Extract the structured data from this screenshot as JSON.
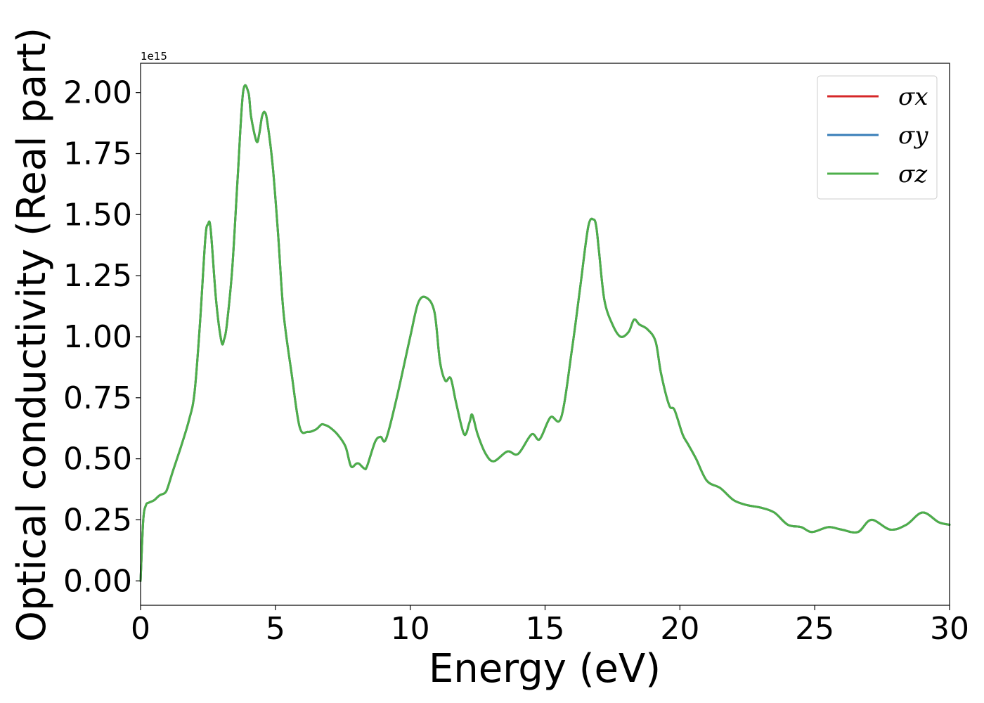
{
  "chart_data": {
    "type": "line",
    "title": "",
    "xlabel": "Energy (eV)",
    "ylabel": "Optical conductivity (Real part)",
    "y_offset_label": "1e15",
    "xlim": [
      0,
      30
    ],
    "ylim": [
      -0.1,
      2.12
    ],
    "x_ticks": [
      "0",
      "5",
      "10",
      "15",
      "20",
      "25",
      "30"
    ],
    "y_ticks": [
      "0.00",
      "0.25",
      "0.50",
      "0.75",
      "1.00",
      "1.25",
      "1.50",
      "1.75",
      "2.00"
    ],
    "grid": false,
    "legend_position": "top-right",
    "x": [
      0,
      0.1,
      0.2,
      0.3,
      0.5,
      0.7,
      0.9,
      1.0,
      1.2,
      1.5,
      1.8,
      2.0,
      2.2,
      2.4,
      2.5,
      2.6,
      2.8,
      3.0,
      3.1,
      3.2,
      3.4,
      3.6,
      3.8,
      4.0,
      4.1,
      4.3,
      4.4,
      4.5,
      4.6,
      4.7,
      4.9,
      5.1,
      5.3,
      5.6,
      5.9,
      6.2,
      6.5,
      6.7,
      6.8,
      7.0,
      7.3,
      7.6,
      7.8,
      8.0,
      8.1,
      8.3,
      8.4,
      8.7,
      8.9,
      9.1,
      9.5,
      10.0,
      10.3,
      10.6,
      10.9,
      11.1,
      11.3,
      11.5,
      11.7,
      12.0,
      12.2,
      12.3,
      12.5,
      12.8,
      13.1,
      13.6,
      14.0,
      14.5,
      14.8,
      15.2,
      15.6,
      16.0,
      16.3,
      16.6,
      16.8,
      16.9,
      17.0,
      17.2,
      17.5,
      17.8,
      18.1,
      18.3,
      18.5,
      18.8,
      19.1,
      19.3,
      19.6,
      19.8,
      20.1,
      20.3,
      20.6,
      21.0,
      21.5,
      22.0,
      22.5,
      23.0,
      23.5,
      24.0,
      24.5,
      24.9,
      25.5,
      26.0,
      26.6,
      27.1,
      27.8,
      28.4,
      29.0,
      29.6,
      30.0
    ],
    "series": [
      {
        "name": "σx",
        "color": "#d62728",
        "values": [
          0.0,
          0.25,
          0.31,
          0.32,
          0.33,
          0.35,
          0.36,
          0.38,
          0.45,
          0.55,
          0.66,
          0.77,
          1.05,
          1.4,
          1.46,
          1.44,
          1.15,
          0.98,
          0.99,
          1.05,
          1.28,
          1.65,
          2.0,
          2.0,
          1.9,
          1.8,
          1.83,
          1.9,
          1.92,
          1.88,
          1.7,
          1.42,
          1.1,
          0.85,
          0.63,
          0.61,
          0.62,
          0.64,
          0.64,
          0.63,
          0.6,
          0.55,
          0.47,
          0.48,
          0.48,
          0.46,
          0.47,
          0.57,
          0.59,
          0.58,
          0.75,
          1.0,
          1.14,
          1.16,
          1.1,
          0.9,
          0.82,
          0.83,
          0.73,
          0.6,
          0.65,
          0.68,
          0.6,
          0.52,
          0.49,
          0.53,
          0.52,
          0.6,
          0.58,
          0.67,
          0.67,
          0.95,
          1.2,
          1.45,
          1.48,
          1.45,
          1.35,
          1.15,
          1.05,
          1.0,
          1.02,
          1.07,
          1.05,
          1.03,
          0.98,
          0.85,
          0.72,
          0.7,
          0.6,
          0.56,
          0.5,
          0.41,
          0.38,
          0.33,
          0.31,
          0.3,
          0.28,
          0.23,
          0.22,
          0.2,
          0.22,
          0.21,
          0.2,
          0.25,
          0.21,
          0.23,
          0.28,
          0.24,
          0.23
        ]
      },
      {
        "name": "σy",
        "color": "#377eb8",
        "values": [
          0.0,
          0.25,
          0.31,
          0.32,
          0.33,
          0.35,
          0.36,
          0.38,
          0.45,
          0.55,
          0.66,
          0.77,
          1.05,
          1.4,
          1.46,
          1.44,
          1.15,
          0.98,
          0.99,
          1.05,
          1.28,
          1.65,
          2.0,
          2.0,
          1.9,
          1.8,
          1.83,
          1.9,
          1.92,
          1.88,
          1.7,
          1.42,
          1.1,
          0.85,
          0.63,
          0.61,
          0.62,
          0.64,
          0.64,
          0.63,
          0.6,
          0.55,
          0.47,
          0.48,
          0.48,
          0.46,
          0.47,
          0.57,
          0.59,
          0.58,
          0.75,
          1.0,
          1.14,
          1.16,
          1.1,
          0.9,
          0.82,
          0.83,
          0.73,
          0.6,
          0.65,
          0.68,
          0.6,
          0.52,
          0.49,
          0.53,
          0.52,
          0.6,
          0.58,
          0.67,
          0.67,
          0.95,
          1.2,
          1.45,
          1.48,
          1.45,
          1.35,
          1.15,
          1.05,
          1.0,
          1.02,
          1.07,
          1.05,
          1.03,
          0.98,
          0.85,
          0.72,
          0.7,
          0.6,
          0.56,
          0.5,
          0.41,
          0.38,
          0.33,
          0.31,
          0.3,
          0.28,
          0.23,
          0.22,
          0.2,
          0.22,
          0.21,
          0.2,
          0.25,
          0.21,
          0.23,
          0.28,
          0.24,
          0.23
        ]
      },
      {
        "name": "σz",
        "color": "#4daf4a",
        "values": [
          0.0,
          0.25,
          0.31,
          0.32,
          0.33,
          0.35,
          0.36,
          0.38,
          0.45,
          0.55,
          0.66,
          0.77,
          1.05,
          1.4,
          1.46,
          1.44,
          1.15,
          0.98,
          0.99,
          1.05,
          1.28,
          1.65,
          2.0,
          2.0,
          1.9,
          1.8,
          1.83,
          1.9,
          1.92,
          1.88,
          1.7,
          1.42,
          1.1,
          0.85,
          0.63,
          0.61,
          0.62,
          0.64,
          0.64,
          0.63,
          0.6,
          0.55,
          0.47,
          0.48,
          0.48,
          0.46,
          0.47,
          0.57,
          0.59,
          0.58,
          0.75,
          1.0,
          1.14,
          1.16,
          1.1,
          0.9,
          0.82,
          0.83,
          0.73,
          0.6,
          0.65,
          0.68,
          0.6,
          0.52,
          0.49,
          0.53,
          0.52,
          0.6,
          0.58,
          0.67,
          0.67,
          0.95,
          1.2,
          1.45,
          1.48,
          1.45,
          1.35,
          1.15,
          1.05,
          1.0,
          1.02,
          1.07,
          1.05,
          1.03,
          0.98,
          0.85,
          0.72,
          0.7,
          0.6,
          0.56,
          0.5,
          0.41,
          0.38,
          0.33,
          0.31,
          0.3,
          0.28,
          0.23,
          0.22,
          0.2,
          0.22,
          0.21,
          0.2,
          0.25,
          0.21,
          0.23,
          0.28,
          0.24,
          0.23
        ]
      }
    ]
  }
}
